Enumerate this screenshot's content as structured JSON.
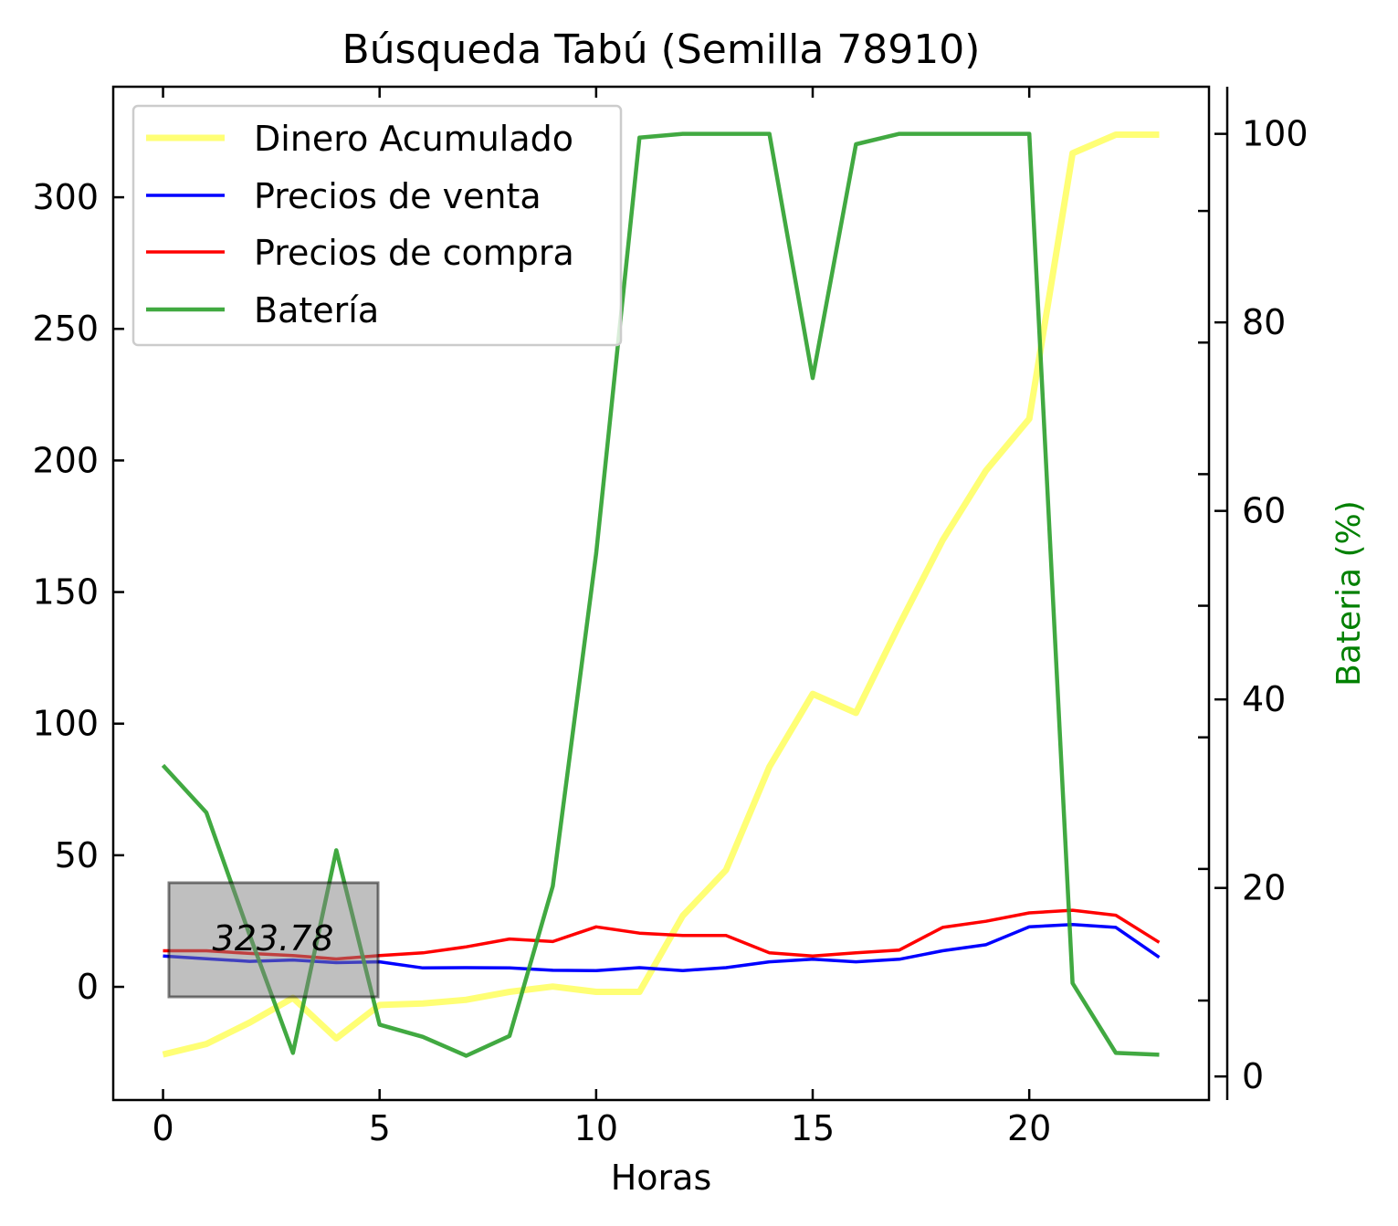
{
  "chart_data": {
    "type": "line",
    "title": "Búsqueda Tabú (Semilla 78910)",
    "xlabel": "Horas",
    "ylabel": "",
    "y2label": "Bateria (%)",
    "xlim": [
      -1.15,
      24.15
    ],
    "ylim": [
      -43,
      342
    ],
    "y2lim": [
      -2.5,
      105
    ],
    "xticks": [
      0,
      5,
      10,
      15,
      20
    ],
    "yticks": [
      0,
      50,
      100,
      150,
      200,
      250,
      300
    ],
    "y2ticks": [
      0,
      20,
      40,
      60,
      80,
      100
    ],
    "legend_position": "top-left",
    "x": [
      0,
      1,
      2,
      3,
      4,
      5,
      6,
      7,
      8,
      9,
      10,
      11,
      12,
      13,
      14,
      15,
      16,
      17,
      18,
      19,
      20,
      21,
      22,
      23
    ],
    "series": [
      {
        "name": "Dinero Acumulado",
        "axis": "left",
        "color": "#ffff66",
        "values": [
          -25.7,
          -21.7,
          -13.6,
          -4.2,
          -19.6,
          -6.9,
          -6.3,
          -4.9,
          -1.9,
          0.1,
          -1.9,
          -1.9,
          27.0,
          44.4,
          83.6,
          111.3,
          104.1,
          137.6,
          169.7,
          196.1,
          215.8,
          316.7,
          323.8,
          323.8
        ]
      },
      {
        "name": "Precios de venta",
        "axis": "left",
        "color": "#0000ff",
        "values": [
          11.7,
          10.7,
          9.7,
          10.2,
          9.2,
          9.5,
          7.2,
          7.3,
          7.2,
          6.3,
          6.2,
          7.3,
          6.2,
          7.3,
          9.5,
          10.5,
          9.5,
          10.5,
          13.7,
          16.0,
          22.8,
          23.7,
          22.6,
          11.2
        ]
      },
      {
        "name": "Precios de compra",
        "axis": "left",
        "color": "#ff0000",
        "values": [
          13.7,
          13.7,
          12.7,
          11.9,
          10.6,
          11.9,
          12.9,
          15.2,
          18.2,
          17.2,
          22.8,
          20.4,
          19.5,
          19.5,
          12.9,
          11.7,
          12.9,
          14.0,
          22.6,
          24.9,
          28.1,
          29.1,
          27.2,
          16.9
        ]
      },
      {
        "name": "Batería",
        "axis": "right",
        "color": "#2ca02c",
        "values": [
          33.0,
          28.0,
          15.0,
          2.5,
          24.0,
          5.5,
          4.2,
          2.2,
          4.3,
          20.2,
          55.5,
          99.6,
          100,
          100,
          100,
          74.1,
          98.9,
          100,
          100,
          100,
          100,
          9.9,
          2.5,
          2.3
        ]
      }
    ],
    "annotation": {
      "text": "323.78"
    }
  }
}
